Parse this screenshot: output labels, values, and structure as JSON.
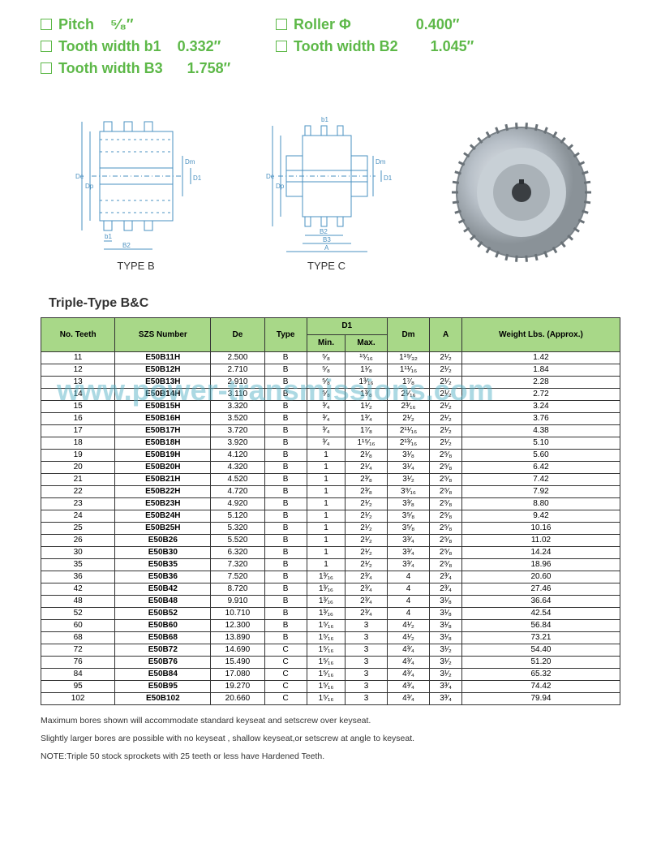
{
  "specs": [
    [
      {
        "label": "Pitch",
        "value": "⁵⁄₈″"
      },
      {
        "label": "Roller Φ",
        "value": "0.400″"
      }
    ],
    [
      {
        "label": "Tooth width b1",
        "value": "0.332″"
      },
      {
        "label": "Tooth width B2",
        "value": "1.045″"
      }
    ],
    [
      {
        "label": "Tooth width B3",
        "value": "1.758″"
      }
    ]
  ],
  "diagrams": {
    "typeB": {
      "caption": "TYPE B",
      "labels": {
        "De": "De",
        "Dp": "Dp",
        "Dm": "Dm",
        "D1": "D1",
        "b1": "b1",
        "B2": "B2",
        "B3": "B3",
        "A": "A"
      }
    },
    "typeC": {
      "caption": "TYPE C",
      "labels": {
        "De": "De",
        "Dp": "Dp",
        "Dm": "Dm",
        "D1": "D1",
        "b1": "b1",
        "B2": "B2",
        "B3": "B3",
        "A": "A"
      }
    }
  },
  "watermark": "www.power-transmissions.com",
  "table": {
    "title": "Triple-Type B&C",
    "headers": {
      "teeth": "No. Teeth",
      "szs": "SZS Number",
      "de": "De",
      "type": "Type",
      "d1": "D1",
      "d1min": "Min.",
      "d1max": "Max.",
      "dm": "Dm",
      "a": "A",
      "weight": "Weight Lbs. (Approx.)"
    },
    "rows": [
      {
        "teeth": "11",
        "szs": "E50B11H",
        "de": "2.500",
        "type": "B",
        "min": "⁵⁄₈",
        "max": "¹⁵⁄₁₆",
        "dm": "1¹⁹⁄₃₂",
        "a": "2¹⁄₂",
        "wt": "1.42"
      },
      {
        "teeth": "12",
        "szs": "E50B12H",
        "de": "2.710",
        "type": "B",
        "min": "⁵⁄₈",
        "max": "1¹⁄₈",
        "dm": "1¹¹⁄₁₆",
        "a": "2¹⁄₂",
        "wt": "1.84"
      },
      {
        "teeth": "13",
        "szs": "E50B13H",
        "de": "2.910",
        "type": "B",
        "min": "⁵⁄₈",
        "max": "1³⁄₁₆",
        "dm": "1⁷⁄₈",
        "a": "2¹⁄₂",
        "wt": "2.28"
      },
      {
        "teeth": "14",
        "szs": "E50B14H",
        "de": "3.110",
        "type": "B",
        "min": "⁵⁄₈",
        "max": "1³⁄₈",
        "dm": "2¹⁄₁₆",
        "a": "2¹⁄₂",
        "wt": "2.72"
      },
      {
        "teeth": "15",
        "szs": "E50B15H",
        "de": "3.320",
        "type": "B",
        "min": "³⁄₄",
        "max": "1¹⁄₂",
        "dm": "2³⁄₁₆",
        "a": "2¹⁄₂",
        "wt": "3.24"
      },
      {
        "teeth": "16",
        "szs": "E50B16H",
        "de": "3.520",
        "type": "B",
        "min": "³⁄₄",
        "max": "1³⁄₄",
        "dm": "2¹⁄₂",
        "a": "2¹⁄₂",
        "wt": "3.76"
      },
      {
        "teeth": "17",
        "szs": "E50B17H",
        "de": "3.720",
        "type": "B",
        "min": "³⁄₄",
        "max": "1⁷⁄₈",
        "dm": "2¹¹⁄₁₆",
        "a": "2¹⁄₂",
        "wt": "4.38"
      },
      {
        "teeth": "18",
        "szs": "E50B18H",
        "de": "3.920",
        "type": "B",
        "min": "³⁄₄",
        "max": "1¹⁵⁄₁₆",
        "dm": "2¹³⁄₁₆",
        "a": "2¹⁄₂",
        "wt": "5.10"
      },
      {
        "teeth": "19",
        "szs": "E50B19H",
        "de": "4.120",
        "type": "B",
        "min": "1",
        "max": "2¹⁄₈",
        "dm": "3¹⁄₈",
        "a": "2⁵⁄₈",
        "wt": "5.60"
      },
      {
        "teeth": "20",
        "szs": "E50B20H",
        "de": "4.320",
        "type": "B",
        "min": "1",
        "max": "2¹⁄₄",
        "dm": "3¹⁄₄",
        "a": "2⁵⁄₈",
        "wt": "6.42"
      },
      {
        "teeth": "21",
        "szs": "E50B21H",
        "de": "4.520",
        "type": "B",
        "min": "1",
        "max": "2³⁄₈",
        "dm": "3¹⁄₂",
        "a": "2⁵⁄₈",
        "wt": "7.42"
      },
      {
        "teeth": "22",
        "szs": "E50B22H",
        "de": "4.720",
        "type": "B",
        "min": "1",
        "max": "2³⁄₈",
        "dm": "3⁹⁄₁₆",
        "a": "2⁵⁄₈",
        "wt": "7.92"
      },
      {
        "teeth": "23",
        "szs": "E50B23H",
        "de": "4.920",
        "type": "B",
        "min": "1",
        "max": "2¹⁄₂",
        "dm": "3³⁄₈",
        "a": "2⁵⁄₈",
        "wt": "8.80"
      },
      {
        "teeth": "24",
        "szs": "E50B24H",
        "de": "5.120",
        "type": "B",
        "min": "1",
        "max": "2¹⁄₂",
        "dm": "3⁵⁄₈",
        "a": "2⁵⁄₈",
        "wt": "9.42"
      },
      {
        "teeth": "25",
        "szs": "E50B25H",
        "de": "5.320",
        "type": "B",
        "min": "1",
        "max": "2¹⁄₂",
        "dm": "3⁵⁄₈",
        "a": "2⁵⁄₈",
        "wt": "10.16"
      },
      {
        "teeth": "26",
        "szs": "E50B26",
        "de": "5.520",
        "type": "B",
        "min": "1",
        "max": "2¹⁄₂",
        "dm": "3³⁄₄",
        "a": "2⁵⁄₈",
        "wt": "11.02"
      },
      {
        "teeth": "30",
        "szs": "E50B30",
        "de": "6.320",
        "type": "B",
        "min": "1",
        "max": "2¹⁄₂",
        "dm": "3³⁄₄",
        "a": "2⁵⁄₈",
        "wt": "14.24"
      },
      {
        "teeth": "35",
        "szs": "E50B35",
        "de": "7.320",
        "type": "B",
        "min": "1",
        "max": "2¹⁄₂",
        "dm": "3³⁄₄",
        "a": "2⁵⁄₈",
        "wt": "18.96"
      },
      {
        "teeth": "36",
        "szs": "E50B36",
        "de": "7.520",
        "type": "B",
        "min": "1³⁄₁₆",
        "max": "2³⁄₄",
        "dm": "4",
        "a": "2³⁄₄",
        "wt": "20.60"
      },
      {
        "teeth": "42",
        "szs": "E50B42",
        "de": "8.720",
        "type": "B",
        "min": "1³⁄₁₆",
        "max": "2³⁄₄",
        "dm": "4",
        "a": "2³⁄₄",
        "wt": "27.46"
      },
      {
        "teeth": "48",
        "szs": "E50B48",
        "de": "9.910",
        "type": "B",
        "min": "1³⁄₁₆",
        "max": "2³⁄₄",
        "dm": "4",
        "a": "3¹⁄₈",
        "wt": "36.64"
      },
      {
        "teeth": "52",
        "szs": "E50B52",
        "de": "10.710",
        "type": "B",
        "min": "1³⁄₁₆",
        "max": "2³⁄₄",
        "dm": "4",
        "a": "3¹⁄₈",
        "wt": "42.54"
      },
      {
        "teeth": "60",
        "szs": "E50B60",
        "de": "12.300",
        "type": "B",
        "min": "1⁵⁄₁₆",
        "max": "3",
        "dm": "4¹⁄₂",
        "a": "3¹⁄₈",
        "wt": "56.84"
      },
      {
        "teeth": "68",
        "szs": "E50B68",
        "de": "13.890",
        "type": "B",
        "min": "1⁵⁄₁₆",
        "max": "3",
        "dm": "4¹⁄₂",
        "a": "3¹⁄₈",
        "wt": "73.21"
      },
      {
        "teeth": "72",
        "szs": "E50B72",
        "de": "14.690",
        "type": "C",
        "min": "1⁵⁄₁₆",
        "max": "3",
        "dm": "4³⁄₄",
        "a": "3¹⁄₂",
        "wt": "54.40"
      },
      {
        "teeth": "76",
        "szs": "E50B76",
        "de": "15.490",
        "type": "C",
        "min": "1⁵⁄₁₆",
        "max": "3",
        "dm": "4³⁄₄",
        "a": "3¹⁄₂",
        "wt": "51.20"
      },
      {
        "teeth": "84",
        "szs": "E50B84",
        "de": "17.080",
        "type": "C",
        "min": "1⁵⁄₁₆",
        "max": "3",
        "dm": "4³⁄₄",
        "a": "3¹⁄₂",
        "wt": "65.32"
      },
      {
        "teeth": "95",
        "szs": "E50B95",
        "de": "19.270",
        "type": "C",
        "min": "1⁵⁄₁₆",
        "max": "3",
        "dm": "4³⁄₄",
        "a": "3³⁄₄",
        "wt": "74.42"
      },
      {
        "teeth": "102",
        "szs": "E50B102",
        "de": "20.660",
        "type": "C",
        "min": "1⁵⁄₁₆",
        "max": "3",
        "dm": "4³⁄₄",
        "a": "3³⁄₄",
        "wt": "79.94"
      }
    ]
  },
  "footnotes": {
    "line1": "Maximum bores shown will accommodate standard keyseat and setscrew over keyseat.",
    "line2": "Slightly larger bores are possible with no keyseat , shallow keyseat,or setscrew at angle to keyseat.",
    "note": "NOTE:Triple 50 stock sprockets with 25 teeth or less have Hardened Teeth."
  },
  "colors": {
    "green": "#5db848",
    "headerBg": "#a8d888",
    "diagramBlue": "#4a90c0"
  }
}
